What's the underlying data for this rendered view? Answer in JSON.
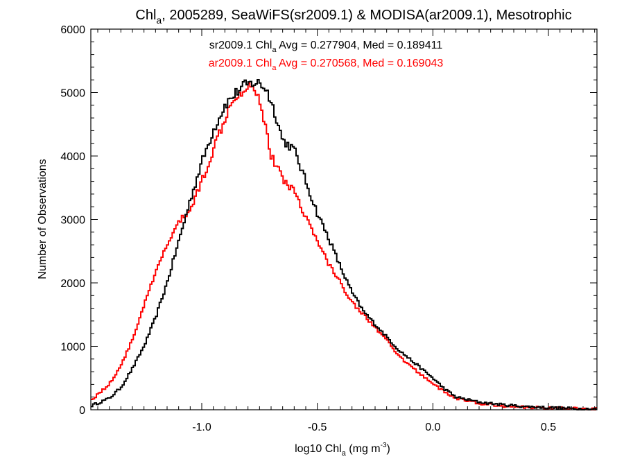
{
  "chart_data": {
    "type": "line",
    "title_parts": {
      "prefix": "Chl",
      "sub": "a",
      "suffix": ", 2005289, SeaWiFS(sr2009.1) & MODISA(ar2009.1), Mesotrophic"
    },
    "xlabel_parts": {
      "prefix": "log10 Chl",
      "sub": "a",
      "mid": " (mg m",
      "sup": "-3",
      "suffix": ")"
    },
    "ylabel": "Number of Observations",
    "xlim": [
      -1.48,
      0.71
    ],
    "ylim": [
      0,
      6000
    ],
    "x_ticks": [
      -1.0,
      -0.5,
      0.0,
      0.5
    ],
    "x_tick_labels": [
      "-1.0",
      "-0.5",
      "0.0",
      "0.5"
    ],
    "y_ticks": [
      0,
      1000,
      2000,
      3000,
      4000,
      5000,
      6000
    ],
    "y_tick_labels": [
      "0",
      "1000",
      "2000",
      "3000",
      "4000",
      "5000",
      "6000"
    ],
    "legend_placement": "top-center",
    "grid": false,
    "series": [
      {
        "name": "sr2009.1",
        "color": "#000000",
        "legend_parts": {
          "prefix": "sr2009.1 Chl",
          "sub": "a",
          "suffix": " Avg = 0.277904, Med = 0.189411"
        },
        "x": [
          -1.48,
          -1.4,
          -1.35,
          -1.3,
          -1.25,
          -1.2,
          -1.15,
          -1.1,
          -1.05,
          -1.0,
          -0.95,
          -0.9,
          -0.85,
          -0.82,
          -0.78,
          -0.75,
          -0.72,
          -0.68,
          -0.65,
          -0.6,
          -0.55,
          -0.5,
          -0.45,
          -0.4,
          -0.35,
          -0.3,
          -0.25,
          -0.2,
          -0.15,
          -0.1,
          -0.05,
          0.0,
          0.05,
          0.1,
          0.2,
          0.3,
          0.4,
          0.5,
          0.6,
          0.71
        ],
        "y": [
          60,
          180,
          350,
          650,
          1000,
          1450,
          2000,
          2650,
          3300,
          3900,
          4400,
          4800,
          5000,
          5100,
          5150,
          5150,
          5050,
          4650,
          4250,
          4100,
          3600,
          3100,
          2700,
          2250,
          1850,
          1550,
          1350,
          1150,
          950,
          800,
          650,
          500,
          330,
          200,
          120,
          80,
          50,
          35,
          20,
          10
        ]
      },
      {
        "name": "ar2009.1",
        "color": "#ff0000",
        "legend_parts": {
          "prefix": "ar2009.1 Chl",
          "sub": "a",
          "suffix": " Avg = 0.270568, Med = 0.169043"
        },
        "x": [
          -1.48,
          -1.4,
          -1.35,
          -1.3,
          -1.25,
          -1.2,
          -1.15,
          -1.1,
          -1.05,
          -1.0,
          -0.95,
          -0.9,
          -0.87,
          -0.85,
          -0.82,
          -0.8,
          -0.78,
          -0.75,
          -0.72,
          -0.7,
          -0.65,
          -0.6,
          -0.55,
          -0.5,
          -0.45,
          -0.4,
          -0.35,
          -0.3,
          -0.25,
          -0.2,
          -0.15,
          -0.1,
          -0.05,
          0.0,
          0.05,
          0.1,
          0.2,
          0.3,
          0.4,
          0.5,
          0.6,
          0.71
        ],
        "y": [
          150,
          400,
          700,
          1100,
          1650,
          2150,
          2600,
          2950,
          3150,
          3600,
          4100,
          4600,
          4900,
          4950,
          5050,
          5100,
          5150,
          4900,
          4400,
          4000,
          3650,
          3450,
          3050,
          2650,
          2300,
          2000,
          1700,
          1500,
          1300,
          1100,
          850,
          700,
          550,
          420,
          280,
          180,
          100,
          60,
          40,
          30,
          20,
          12
        ]
      }
    ]
  }
}
